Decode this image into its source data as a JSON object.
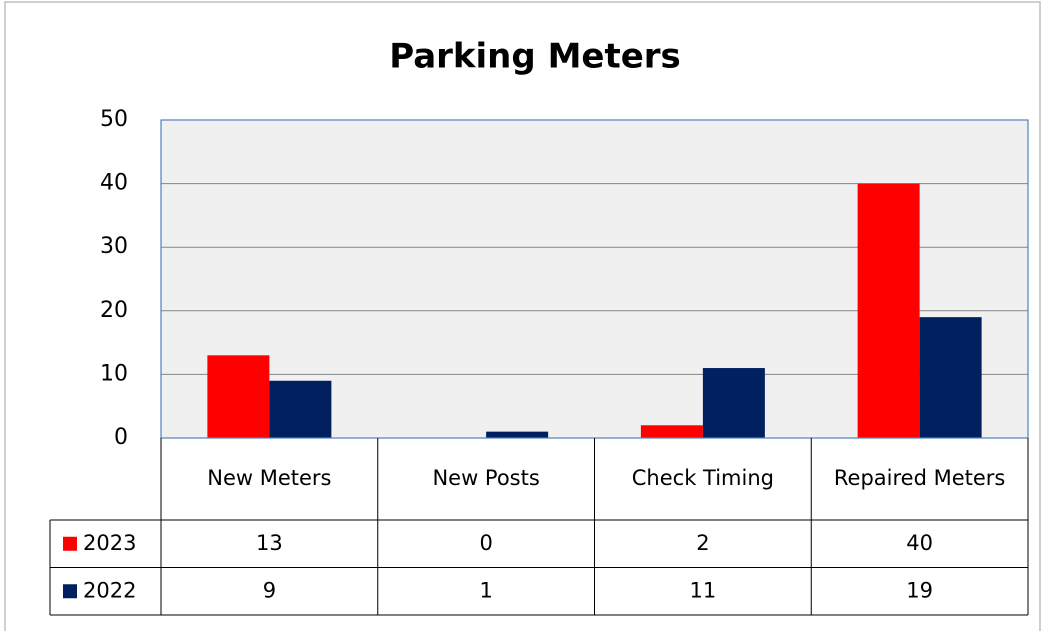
{
  "chart_data": {
    "type": "bar",
    "title": "Parking Meters",
    "categories": [
      "New Meters",
      "New Posts",
      "Check Timing",
      "Repaired Meters"
    ],
    "series": [
      {
        "name": "2023",
        "color": "#ff0000",
        "values": [
          13,
          0,
          2,
          40
        ]
      },
      {
        "name": "2022",
        "color": "#002060",
        "values": [
          9,
          1,
          11,
          19
        ]
      }
    ],
    "ylim": [
      0,
      50
    ],
    "yticks": [
      0,
      10,
      20,
      30,
      40,
      50
    ],
    "grid": true
  }
}
